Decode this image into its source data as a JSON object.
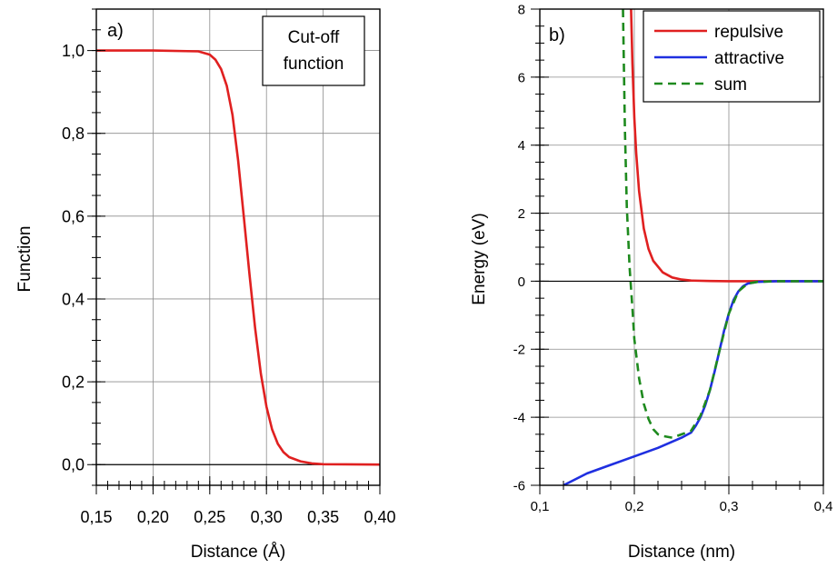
{
  "chart_data": [
    {
      "type": "line",
      "panel_label": "a)",
      "xlabel": "Distance (Å)",
      "ylabel": "Function",
      "xlim": [
        0.15,
        0.4
      ],
      "ylim": [
        -0.05,
        1.1
      ],
      "x_ticks": [
        0.15,
        0.2,
        0.25,
        0.3,
        0.35,
        0.4
      ],
      "x_tick_labels": [
        "0,15",
        "0,20",
        "0,25",
        "0,30",
        "0,35",
        "0,40"
      ],
      "y_ticks": [
        0.0,
        0.2,
        0.4,
        0.6,
        0.8,
        1.0
      ],
      "y_tick_labels": [
        "0,0",
        "0,2",
        "0,4",
        "0,6",
        "0,8",
        "1,0"
      ],
      "grid": true,
      "annotation_lines": [
        "Cut-off",
        "function"
      ],
      "series": [
        {
          "color": "#e02020",
          "dash": "solid",
          "x": [
            0.15,
            0.2,
            0.24,
            0.25,
            0.255,
            0.26,
            0.265,
            0.27,
            0.275,
            0.28,
            0.285,
            0.29,
            0.295,
            0.3,
            0.305,
            0.31,
            0.315,
            0.32,
            0.33,
            0.34,
            0.35,
            0.4
          ],
          "y": [
            1.0,
            1.0,
            0.998,
            0.99,
            0.978,
            0.955,
            0.915,
            0.845,
            0.735,
            0.6,
            0.46,
            0.33,
            0.22,
            0.14,
            0.085,
            0.05,
            0.03,
            0.018,
            0.008,
            0.003,
            0.001,
            0.0
          ]
        }
      ]
    },
    {
      "type": "line",
      "panel_label": "b)",
      "xlabel": "Distance (nm)",
      "ylabel": "Energy (eV)",
      "xlim": [
        0.1,
        0.4
      ],
      "ylim": [
        -6,
        8
      ],
      "x_ticks": [
        0.1,
        0.2,
        0.3,
        0.4
      ],
      "x_tick_labels": [
        "0,1",
        "0,2",
        "0,3",
        "0,4"
      ],
      "y_ticks": [
        -6,
        -4,
        -2,
        0,
        2,
        4,
        6,
        8
      ],
      "y_tick_labels": [
        "-6",
        "-4",
        "-2",
        "0",
        "2",
        "4",
        "6",
        "8"
      ],
      "grid": true,
      "legend_position": "top-right",
      "series": [
        {
          "name": "repulsive",
          "color": "#e02020",
          "dash": "solid",
          "x": [
            0.1965,
            0.198,
            0.2,
            0.202,
            0.205,
            0.21,
            0.215,
            0.22,
            0.23,
            0.24,
            0.25,
            0.26,
            0.28,
            0.3,
            0.32,
            0.35,
            0.4
          ],
          "y": [
            8.0,
            6.4,
            4.8,
            3.75,
            2.65,
            1.55,
            0.95,
            0.6,
            0.26,
            0.11,
            0.05,
            0.02,
            0.005,
            0.0,
            0.0,
            0.0,
            0.0
          ]
        },
        {
          "name": "attractive",
          "color": "#1f2fe0",
          "dash": "solid",
          "x": [
            0.125,
            0.15,
            0.175,
            0.2,
            0.225,
            0.25,
            0.26,
            0.265,
            0.27,
            0.275,
            0.28,
            0.285,
            0.29,
            0.295,
            0.3,
            0.305,
            0.31,
            0.315,
            0.32,
            0.33,
            0.35,
            0.4
          ],
          "y": [
            -6.0,
            -5.65,
            -5.4,
            -5.15,
            -4.9,
            -4.6,
            -4.45,
            -4.25,
            -4.0,
            -3.65,
            -3.2,
            -2.65,
            -2.05,
            -1.45,
            -0.95,
            -0.55,
            -0.3,
            -0.15,
            -0.07,
            -0.02,
            0.0,
            0.0
          ]
        },
        {
          "name": "sum",
          "color": "#1e8a1e",
          "dash": "dashed",
          "x": [
            0.188,
            0.19,
            0.192,
            0.195,
            0.198,
            0.2,
            0.205,
            0.21,
            0.215,
            0.22,
            0.225,
            0.23,
            0.24,
            0.25,
            0.26,
            0.27,
            0.28,
            0.29,
            0.3,
            0.31,
            0.32,
            0.33,
            0.35,
            0.4
          ],
          "y": [
            8.0,
            4.5,
            2.2,
            0.4,
            -0.8,
            -1.7,
            -2.85,
            -3.6,
            -4.05,
            -4.35,
            -4.5,
            -4.55,
            -4.6,
            -4.5,
            -4.4,
            -3.95,
            -3.2,
            -2.05,
            -0.95,
            -0.3,
            -0.07,
            -0.02,
            0.0,
            0.0
          ]
        }
      ]
    }
  ]
}
